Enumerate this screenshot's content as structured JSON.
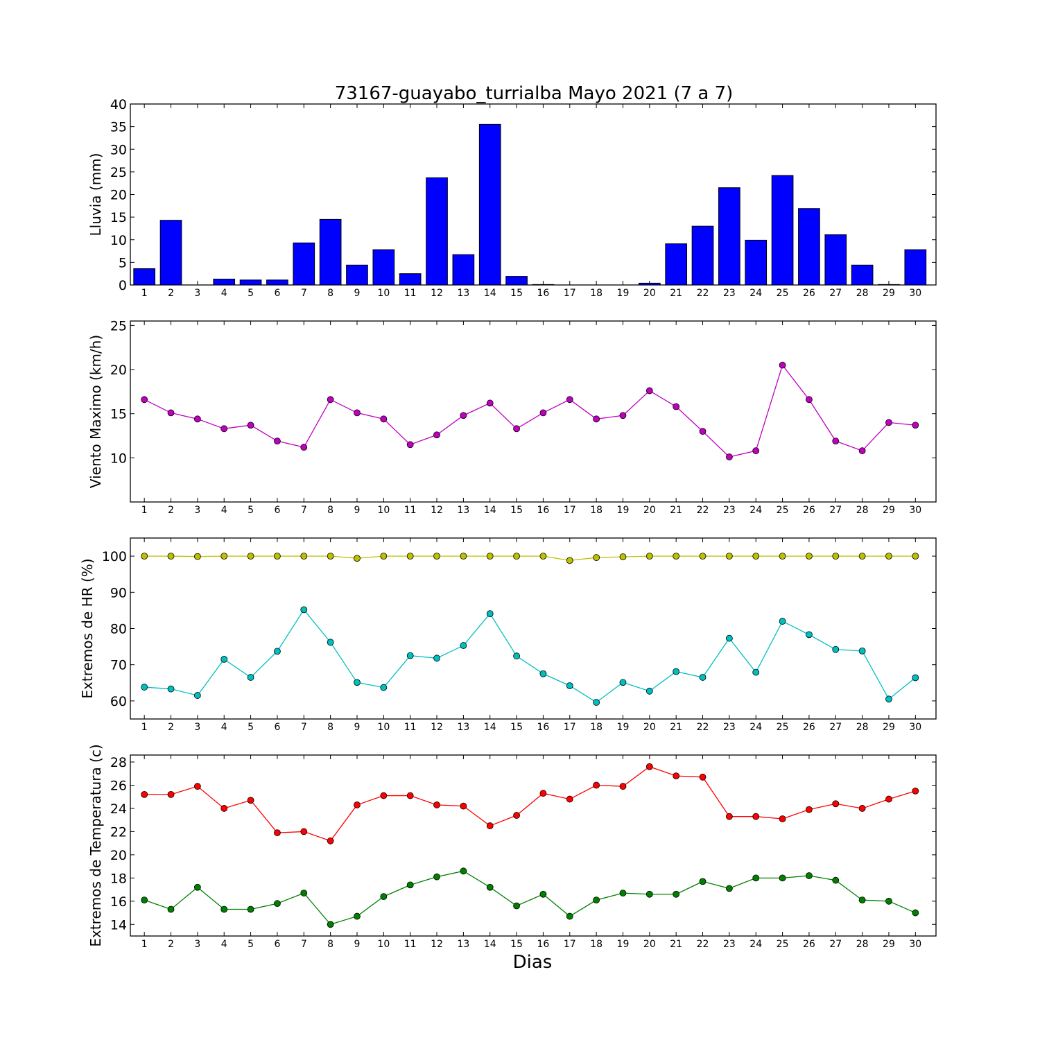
{
  "figure": {
    "title": "73167-guayabo_turrialba Mayo 2021  (7 a 7)",
    "xlabel": "Dias"
  },
  "chart_data": [
    {
      "type": "bar",
      "ylabel": "Lluvia (mm)",
      "ylim": [
        0,
        40
      ],
      "yticks": [
        0,
        5,
        10,
        15,
        20,
        25,
        30,
        35,
        40
      ],
      "categories": [
        "1",
        "2",
        "3",
        "4",
        "5",
        "6",
        "7",
        "8",
        "9",
        "10",
        "11",
        "12",
        "13",
        "14",
        "15",
        "16",
        "17",
        "18",
        "19",
        "20",
        "21",
        "22",
        "23",
        "24",
        "25",
        "26",
        "27",
        "28",
        "29",
        "30"
      ],
      "series": [
        {
          "color": "#0000ff",
          "values": [
            3.6,
            14.3,
            0,
            1.3,
            1.1,
            1.1,
            9.3,
            14.5,
            4.4,
            7.8,
            2.5,
            23.7,
            6.7,
            35.5,
            1.9,
            0.1,
            0,
            0,
            0,
            0.4,
            9.1,
            13,
            21.5,
            9.9,
            24.2,
            16.9,
            11.1,
            4.4,
            0.1,
            7.8
          ]
        }
      ]
    },
    {
      "type": "line",
      "ylabel": "Viento Maximo (km/h)",
      "ylim": [
        5,
        25.5
      ],
      "yticks": [
        10,
        15,
        20,
        25
      ],
      "categories": [
        "1",
        "2",
        "3",
        "4",
        "5",
        "6",
        "7",
        "8",
        "9",
        "10",
        "11",
        "12",
        "13",
        "14",
        "15",
        "16",
        "17",
        "18",
        "19",
        "20",
        "21",
        "22",
        "23",
        "24",
        "25",
        "26",
        "27",
        "28",
        "29",
        "30"
      ],
      "series": [
        {
          "color": "#bf00bf",
          "values": [
            16.6,
            15.1,
            14.4,
            13.3,
            13.7,
            11.9,
            11.2,
            16.6,
            15.1,
            14.4,
            11.5,
            12.6,
            14.8,
            16.2,
            13.3,
            15.1,
            16.6,
            14.4,
            14.8,
            17.6,
            15.8,
            13,
            10.1,
            10.8,
            20.5,
            16.6,
            11.9,
            10.8,
            14,
            13.7
          ]
        }
      ]
    },
    {
      "type": "line",
      "ylabel": "Extremos de HR (%)",
      "ylim": [
        55,
        105
      ],
      "yticks": [
        60,
        70,
        80,
        90,
        100
      ],
      "categories": [
        "1",
        "2",
        "3",
        "4",
        "5",
        "6",
        "7",
        "8",
        "9",
        "10",
        "11",
        "12",
        "13",
        "14",
        "15",
        "16",
        "17",
        "18",
        "19",
        "20",
        "21",
        "22",
        "23",
        "24",
        "25",
        "26",
        "27",
        "28",
        "29",
        "30"
      ],
      "series": [
        {
          "color": "#bfbf00",
          "values": [
            100,
            100,
            99.9,
            100,
            100,
            100,
            100,
            100,
            99.4,
            100,
            100,
            100,
            100,
            100,
            100,
            100,
            98.8,
            99.6,
            99.8,
            100,
            100,
            100,
            100,
            100,
            100,
            100,
            100,
            100,
            100,
            100
          ]
        },
        {
          "color": "#00bfbf",
          "values": [
            63.8,
            63.3,
            61.5,
            71.5,
            66.5,
            73.7,
            85.2,
            76.2,
            65.1,
            63.7,
            72.5,
            71.8,
            75.3,
            84.1,
            72.4,
            67.5,
            64.2,
            59.6,
            65.1,
            62.7,
            68.1,
            66.5,
            77.3,
            67.9,
            82,
            78.3,
            74.2,
            73.8,
            60.5,
            66.4
          ]
        }
      ]
    },
    {
      "type": "line",
      "ylabel": "Extremos de Temperatura (c)",
      "ylim": [
        13,
        28.6
      ],
      "yticks": [
        14,
        16,
        18,
        20,
        22,
        24,
        26,
        28
      ],
      "categories": [
        "1",
        "2",
        "3",
        "4",
        "5",
        "6",
        "7",
        "8",
        "9",
        "10",
        "11",
        "12",
        "13",
        "14",
        "15",
        "16",
        "17",
        "18",
        "19",
        "20",
        "21",
        "22",
        "23",
        "24",
        "25",
        "26",
        "27",
        "28",
        "29",
        "30"
      ],
      "series": [
        {
          "color": "#ff0000",
          "values": [
            25.2,
            25.2,
            25.9,
            24,
            24.7,
            21.9,
            22,
            21.2,
            24.3,
            25.1,
            25.1,
            24.3,
            24.2,
            22.5,
            23.4,
            25.3,
            24.8,
            26,
            25.9,
            27.6,
            26.8,
            26.7,
            23.3,
            23.3,
            23.1,
            23.9,
            24.4,
            24,
            24.8,
            25.5
          ]
        },
        {
          "color": "#008000",
          "values": [
            16.1,
            15.3,
            17.2,
            15.3,
            15.3,
            15.8,
            16.7,
            14,
            14.7,
            16.4,
            17.4,
            18.1,
            18.6,
            17.2,
            15.6,
            16.6,
            14.7,
            16.1,
            16.7,
            16.6,
            16.6,
            17.7,
            17.1,
            18,
            18,
            18.2,
            17.8,
            16.1,
            16,
            15
          ]
        }
      ]
    }
  ]
}
